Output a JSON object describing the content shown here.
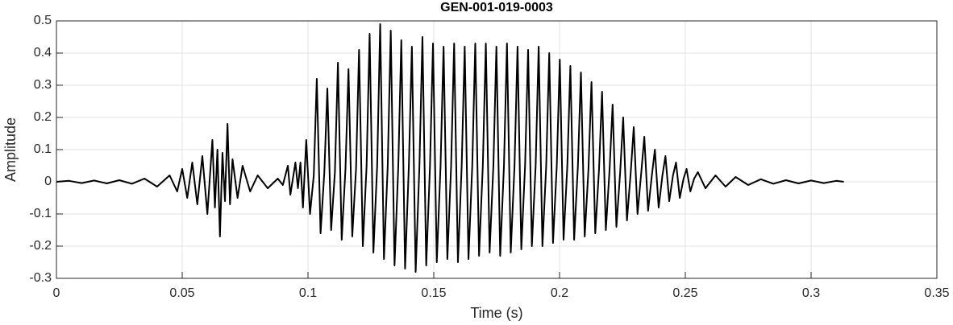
{
  "chart_data": {
    "type": "line",
    "title": "GEN-001-019-0003",
    "xlabel": "Time (s)",
    "ylabel": "Amplitude",
    "xlim": [
      0,
      0.35
    ],
    "ylim": [
      -0.3,
      0.5
    ],
    "xticks": [
      0,
      0.05,
      0.1,
      0.15,
      0.2,
      0.25,
      0.3,
      0.35
    ],
    "yticks": [
      -0.3,
      -0.2,
      -0.1,
      0,
      0.1,
      0.2,
      0.3,
      0.4,
      0.5
    ],
    "grid": true,
    "color": "#000000",
    "x": [
      0,
      0.005,
      0.01,
      0.015,
      0.02,
      0.025,
      0.03,
      0.035,
      0.04,
      0.045,
      0.048,
      0.05,
      0.052,
      0.054,
      0.056,
      0.058,
      0.06,
      0.062,
      0.063,
      0.064,
      0.065,
      0.066,
      0.067,
      0.068,
      0.069,
      0.07,
      0.072,
      0.074,
      0.077,
      0.08,
      0.084,
      0.088,
      0.09,
      0.092,
      0.093,
      0.095,
      0.096,
      0.097,
      0.098,
      0.0993,
      0.1008,
      0.1023,
      0.1035,
      0.105,
      0.1065,
      0.1077,
      0.1092,
      0.1107,
      0.1119,
      0.1134,
      0.1149,
      0.1161,
      0.1176,
      0.1191,
      0.1203,
      0.1218,
      0.1233,
      0.1245,
      0.126,
      0.1275,
      0.1287,
      0.1302,
      0.1317,
      0.1329,
      0.1344,
      0.1359,
      0.1371,
      0.1386,
      0.1401,
      0.1413,
      0.1428,
      0.1443,
      0.1455,
      0.147,
      0.1485,
      0.1497,
      0.1512,
      0.1527,
      0.1539,
      0.1554,
      0.1569,
      0.1581,
      0.1596,
      0.1611,
      0.1623,
      0.1638,
      0.1653,
      0.1665,
      0.168,
      0.1695,
      0.1707,
      0.1722,
      0.1737,
      0.1749,
      0.1764,
      0.1779,
      0.1791,
      0.1806,
      0.1821,
      0.1833,
      0.1848,
      0.1863,
      0.1875,
      0.189,
      0.1905,
      0.1917,
      0.1932,
      0.1947,
      0.1959,
      0.1974,
      0.1989,
      0.2001,
      0.2016,
      0.2031,
      0.2043,
      0.2058,
      0.2073,
      0.2085,
      0.21,
      0.2115,
      0.2127,
      0.2142,
      0.2157,
      0.2169,
      0.2184,
      0.2199,
      0.2211,
      0.2226,
      0.2241,
      0.2253,
      0.2268,
      0.2283,
      0.2295,
      0.231,
      0.2325,
      0.2337,
      0.2352,
      0.2367,
      0.2379,
      0.2394,
      0.2409,
      0.2421,
      0.2436,
      0.2451,
      0.2463,
      0.2478,
      0.2493,
      0.2505,
      0.252,
      0.2535,
      0.255,
      0.258,
      0.262,
      0.266,
      0.27,
      0.275,
      0.28,
      0.285,
      0.29,
      0.295,
      0.3,
      0.305,
      0.31,
      0.313
    ],
    "values": [
      0,
      0.003,
      -0.004,
      0.004,
      -0.005,
      0.005,
      -0.006,
      0.01,
      -0.015,
      0.02,
      -0.03,
      0.04,
      -0.05,
      0.06,
      -0.07,
      0.08,
      -0.1,
      0.13,
      -0.08,
      0.1,
      -0.17,
      0.09,
      -0.06,
      0.18,
      -0.07,
      0.07,
      -0.05,
      0.05,
      -0.03,
      0.02,
      -0.02,
      0.01,
      -0.01,
      0.05,
      -0.04,
      0.06,
      -0.02,
      0.06,
      -0.08,
      0.13,
      -0.1,
      0.02,
      0.32,
      -0.16,
      0.03,
      0.29,
      -0.15,
      0.03,
      0.37,
      -0.18,
      0.04,
      0.35,
      -0.17,
      0.04,
      0.41,
      -0.2,
      0.05,
      0.46,
      -0.22,
      0.05,
      0.49,
      -0.24,
      0.05,
      0.47,
      -0.26,
      0.05,
      0.44,
      -0.27,
      0.05,
      0.42,
      -0.28,
      0.05,
      0.45,
      -0.26,
      0.05,
      0.43,
      -0.25,
      0.05,
      0.42,
      -0.24,
      0.05,
      0.43,
      -0.25,
      0.05,
      0.42,
      -0.24,
      0.05,
      0.43,
      -0.23,
      0.05,
      0.43,
      -0.22,
      0.05,
      0.42,
      -0.23,
      0.05,
      0.43,
      -0.22,
      0.05,
      0.42,
      -0.21,
      0.05,
      0.41,
      -0.2,
      0.05,
      0.42,
      -0.2,
      0.05,
      0.4,
      -0.19,
      0.05,
      0.38,
      -0.18,
      0.05,
      0.36,
      -0.18,
      0.05,
      0.34,
      -0.17,
      0.04,
      0.31,
      -0.16,
      0.04,
      0.28,
      -0.15,
      0.04,
      0.24,
      -0.14,
      0.03,
      0.2,
      -0.12,
      0.03,
      0.17,
      -0.1,
      0.03,
      0.14,
      -0.09,
      0.02,
      0.1,
      -0.08,
      0.02,
      0.08,
      -0.06,
      0.02,
      0.06,
      -0.05,
      0.01,
      0.04,
      -0.03,
      0.01,
      0.03,
      -0.02,
      0.02,
      -0.015,
      0.015,
      -0.01,
      0.008,
      -0.006,
      0.005,
      -0.005,
      0.004,
      -0.004,
      0.003,
      0
    ]
  }
}
